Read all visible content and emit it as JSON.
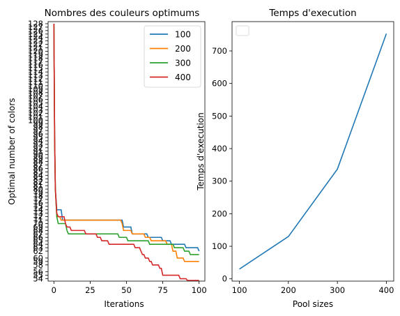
{
  "chart_data": [
    {
      "type": "line",
      "title": "Nombres des couleurs optimums",
      "xlabel": "Iterations",
      "ylabel": "Optimal number of colors",
      "x_ticks": [
        0,
        25,
        50,
        75,
        100
      ],
      "xlim": [
        -4,
        104
      ],
      "y_ticks": [
        54,
        55,
        56,
        58,
        59,
        60,
        62,
        63,
        64,
        65,
        66,
        67,
        68,
        69,
        70,
        71,
        72,
        73,
        74,
        75,
        76,
        77,
        78,
        79,
        80,
        81,
        82,
        83,
        84,
        85,
        86,
        87,
        88,
        89,
        90,
        91,
        92,
        93,
        94,
        95,
        96,
        97,
        98,
        99,
        100,
        101,
        102,
        103,
        104,
        105,
        106,
        107,
        108,
        109,
        110,
        111,
        112,
        113,
        114,
        115,
        116,
        117,
        118,
        119,
        120,
        121,
        122,
        123,
        124,
        125,
        126,
        127,
        128
      ],
      "ylim": [
        53.3,
        128.6
      ],
      "legend_position": "top-right",
      "series": [
        {
          "name": "100",
          "color": "#1f77b4",
          "points": [
            [
              0,
              128
            ],
            [
              0.5,
              95
            ],
            [
              1,
              80
            ],
            [
              2,
              74
            ],
            [
              5,
              74
            ],
            [
              6,
              71
            ],
            [
              47,
              71
            ],
            [
              48,
              69
            ],
            [
              53,
              69
            ],
            [
              54,
              67
            ],
            [
              64,
              67
            ],
            [
              65,
              66
            ],
            [
              74,
              66
            ],
            [
              75,
              65
            ],
            [
              80,
              65
            ],
            [
              81,
              64
            ],
            [
              90,
              64
            ],
            [
              91,
              63
            ],
            [
              99,
              63
            ],
            [
              100,
              62
            ]
          ]
        },
        {
          "name": "200",
          "color": "#ff7f00",
          "points": [
            [
              0,
              128
            ],
            [
              0.5,
              95
            ],
            [
              1,
              80
            ],
            [
              2,
              72
            ],
            [
              4,
              72
            ],
            [
              5,
              71
            ],
            [
              46,
              71
            ],
            [
              47,
              70
            ],
            [
              48,
              68
            ],
            [
              53,
              68
            ],
            [
              54,
              67
            ],
            [
              62,
              67
            ],
            [
              63,
              66
            ],
            [
              66,
              66
            ],
            [
              67,
              65
            ],
            [
              77,
              65
            ],
            [
              78,
              64
            ],
            [
              81,
              64
            ],
            [
              82,
              62
            ],
            [
              84,
              62
            ],
            [
              85,
              60
            ],
            [
              89,
              60
            ],
            [
              90,
              59
            ],
            [
              100,
              59
            ]
          ]
        },
        {
          "name": "300",
          "color": "#2ca02c",
          "points": [
            [
              0,
              128
            ],
            [
              0.5,
              95
            ],
            [
              1,
              80
            ],
            [
              2,
              72
            ],
            [
              3,
              70
            ],
            [
              8,
              70
            ],
            [
              9,
              68
            ],
            [
              10,
              67
            ],
            [
              44,
              67
            ],
            [
              45,
              66
            ],
            [
              50,
              66
            ],
            [
              51,
              65
            ],
            [
              65,
              65
            ],
            [
              66,
              64
            ],
            [
              82,
              64
            ],
            [
              83,
              63
            ],
            [
              89,
              63
            ],
            [
              90,
              62
            ],
            [
              93,
              62
            ],
            [
              94,
              61
            ],
            [
              100,
              61
            ]
          ]
        },
        {
          "name": "400",
          "color": "#d62728",
          "points": [
            [
              0,
              128
            ],
            [
              0.5,
              95
            ],
            [
              1,
              80
            ],
            [
              2,
              73
            ],
            [
              3,
              72
            ],
            [
              7,
              72
            ],
            [
              8,
              70
            ],
            [
              9,
              69
            ],
            [
              11,
              69
            ],
            [
              12,
              68
            ],
            [
              21,
              68
            ],
            [
              22,
              67
            ],
            [
              29,
              67
            ],
            [
              30,
              66
            ],
            [
              32,
              66
            ],
            [
              33,
              65
            ],
            [
              37,
              65
            ],
            [
              38,
              64
            ],
            [
              55,
              64
            ],
            [
              56,
              63
            ],
            [
              59,
              63
            ],
            [
              60,
              62
            ],
            [
              61,
              61
            ],
            [
              62,
              61
            ],
            [
              63,
              60
            ],
            [
              65,
              60
            ],
            [
              66,
              59
            ],
            [
              67,
              59
            ],
            [
              68,
              58
            ],
            [
              72,
              58
            ],
            [
              73,
              57
            ],
            [
              74,
              57
            ],
            [
              75,
              55
            ],
            [
              86,
              55
            ],
            [
              87,
              54
            ],
            [
              91,
              54
            ],
            [
              92,
              53.5
            ],
            [
              100,
              53.5
            ]
          ]
        }
      ]
    },
    {
      "type": "line",
      "title": "Temps d'execution",
      "xlabel": "Pool sizes",
      "ylabel": "Temps d'execution",
      "x_ticks": [
        100,
        200,
        300,
        400
      ],
      "xlim": [
        85,
        415
      ],
      "y_ticks": [
        0,
        100,
        200,
        300,
        400,
        500,
        600,
        700
      ],
      "ylim": [
        -7,
        790
      ],
      "legend_position": "top-left",
      "series": [
        {
          "color": "#1f77b4",
          "x": [
            100,
            200,
            300,
            400
          ],
          "values": [
            30,
            130,
            337,
            753
          ]
        }
      ]
    }
  ]
}
